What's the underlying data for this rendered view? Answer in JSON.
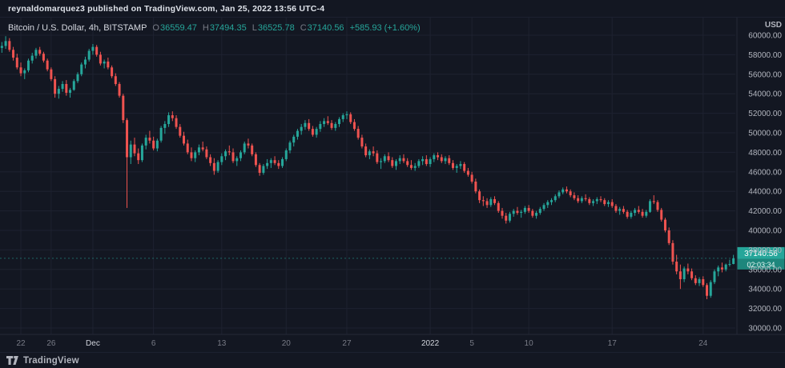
{
  "publish_bar": {
    "text": "reynaldomarquez3 published on TradingView.com, Jan 25, 2022 13:56 UTC-4"
  },
  "legend": {
    "title": "Bitcoin / U.S. Dollar, 4h, BITSTAMP",
    "o_label": "O",
    "o": "36559.47",
    "h_label": "H",
    "h": "37494.35",
    "l_label": "L",
    "l": "36525.78",
    "c_label": "C",
    "c": "37140.56",
    "change": "+585.93 (+1.60%)"
  },
  "axis": {
    "currency": "USD",
    "last_price": "37140.56",
    "countdown": "02:03:34"
  },
  "footer": {
    "brand": "TradingView"
  },
  "colors": {
    "bg": "#131722",
    "grid": "#1e2230",
    "up": "#26a69a",
    "down": "#ef5350",
    "axis_text": "#b2b5be",
    "axis_text_dim": "#787b86",
    "axis_text_major": "#d1d4dc",
    "badge": "#26a69a",
    "badge_dark": "#1e867c",
    "scale_border": "#242837"
  },
  "chart_data": {
    "type": "candlestick",
    "title": "Bitcoin / U.S. Dollar, 4h, BITSTAMP",
    "symbol": "BTCUSD",
    "interval": "4h",
    "exchange": "BITSTAMP",
    "last": {
      "o": 36559.47,
      "h": 37494.35,
      "l": 36525.78,
      "c": 37140.56,
      "change": 585.93,
      "change_pct": 1.6
    },
    "y_axis": {
      "min": 30000,
      "max": 60000,
      "step": 2000,
      "ticks": [
        60000,
        58000,
        56000,
        54000,
        52000,
        50000,
        48000,
        46000,
        44000,
        42000,
        40000,
        38000,
        36000,
        34000,
        32000,
        30000
      ]
    },
    "x_ticks": [
      {
        "label": "22",
        "i": 5,
        "major": false
      },
      {
        "label": "26",
        "i": 13,
        "major": false
      },
      {
        "label": "Dec",
        "i": 24,
        "major": true
      },
      {
        "label": "6",
        "i": 40,
        "major": false
      },
      {
        "label": "13",
        "i": 58,
        "major": false
      },
      {
        "label": "20",
        "i": 75,
        "major": false
      },
      {
        "label": "27",
        "i": 91,
        "major": false
      },
      {
        "label": "2022",
        "i": 113,
        "major": true
      },
      {
        "label": "5",
        "i": 124,
        "major": false
      },
      {
        "label": "10",
        "i": 139,
        "major": false
      },
      {
        "label": "17",
        "i": 161,
        "major": false
      },
      {
        "label": "24",
        "i": 185,
        "major": false
      }
    ],
    "candles": [
      [
        58700,
        59300,
        58200,
        58900
      ],
      [
        58900,
        59900,
        58600,
        59400
      ],
      [
        59400,
        59700,
        58300,
        58500
      ],
      [
        58500,
        58800,
        57400,
        57700
      ],
      [
        57700,
        58100,
        56500,
        56700
      ],
      [
        56700,
        57200,
        55800,
        56100
      ],
      [
        56100,
        56600,
        55500,
        56400
      ],
      [
        56400,
        57600,
        56200,
        57400
      ],
      [
        57400,
        58200,
        57100,
        57900
      ],
      [
        57900,
        58700,
        57600,
        58500
      ],
      [
        58500,
        58800,
        57900,
        58100
      ],
      [
        58100,
        58300,
        57200,
        57400
      ],
      [
        57400,
        57600,
        56300,
        56500
      ],
      [
        56500,
        56700,
        55300,
        55500
      ],
      [
        55500,
        55800,
        53600,
        54000
      ],
      [
        54000,
        54800,
        53500,
        54500
      ],
      [
        54500,
        55300,
        54200,
        55000
      ],
      [
        55000,
        55400,
        53800,
        54100
      ],
      [
        54100,
        54600,
        53600,
        54400
      ],
      [
        54400,
        55500,
        54300,
        55300
      ],
      [
        55300,
        56200,
        55100,
        56000
      ],
      [
        56000,
        57200,
        55800,
        57000
      ],
      [
        57000,
        57800,
        56600,
        57500
      ],
      [
        57500,
        58600,
        57300,
        58400
      ],
      [
        58400,
        59100,
        58000,
        58800
      ],
      [
        58800,
        59000,
        57800,
        58000
      ],
      [
        58000,
        58300,
        56900,
        57100
      ],
      [
        57100,
        57500,
        56600,
        57300
      ],
      [
        57300,
        57700,
        56500,
        56700
      ],
      [
        56700,
        56900,
        55600,
        55800
      ],
      [
        55800,
        56100,
        54800,
        55000
      ],
      [
        55000,
        55200,
        53600,
        53800
      ],
      [
        53800,
        54000,
        51000,
        51300
      ],
      [
        51300,
        51500,
        42300,
        47500
      ],
      [
        47500,
        49200,
        46800,
        48800
      ],
      [
        48800,
        49500,
        47600,
        47900
      ],
      [
        47900,
        48400,
        46800,
        47200
      ],
      [
        47200,
        48900,
        47000,
        48700
      ],
      [
        48700,
        49800,
        48300,
        49500
      ],
      [
        49500,
        50200,
        48900,
        49200
      ],
      [
        49200,
        49600,
        48200,
        48400
      ],
      [
        48400,
        49400,
        48100,
        49200
      ],
      [
        49200,
        50700,
        49000,
        50500
      ],
      [
        50500,
        51200,
        49900,
        50900
      ],
      [
        50900,
        52100,
        50600,
        51800
      ],
      [
        51800,
        52200,
        51200,
        51500
      ],
      [
        51500,
        51800,
        50400,
        50600
      ],
      [
        50600,
        50900,
        49500,
        49700
      ],
      [
        49700,
        50100,
        48700,
        48900
      ],
      [
        48900,
        49300,
        47800,
        48000
      ],
      [
        48000,
        48500,
        47100,
        47400
      ],
      [
        47400,
        48200,
        47000,
        48000
      ],
      [
        48000,
        48800,
        47700,
        48500
      ],
      [
        48500,
        49100,
        48100,
        48300
      ],
      [
        48300,
        48600,
        47300,
        47500
      ],
      [
        47500,
        47800,
        46600,
        46900
      ],
      [
        46900,
        47400,
        45700,
        46100
      ],
      [
        46100,
        47200,
        45900,
        47000
      ],
      [
        47000,
        47900,
        46700,
        47600
      ],
      [
        47600,
        48300,
        47200,
        48100
      ],
      [
        48100,
        48700,
        47700,
        48000
      ],
      [
        48000,
        48400,
        46900,
        47100
      ],
      [
        47100,
        47600,
        46600,
        47400
      ],
      [
        47400,
        48200,
        47100,
        48000
      ],
      [
        48000,
        49100,
        47800,
        48900
      ],
      [
        48900,
        49400,
        48400,
        48700
      ],
      [
        48700,
        48900,
        47600,
        47800
      ],
      [
        47800,
        48000,
        46500,
        46700
      ],
      [
        46700,
        46900,
        45600,
        45900
      ],
      [
        45900,
        46800,
        45700,
        46600
      ],
      [
        46600,
        47300,
        46300,
        46900
      ],
      [
        46900,
        47400,
        46400,
        47200
      ],
      [
        47200,
        47600,
        46700,
        46900
      ],
      [
        46900,
        47200,
        46300,
        46600
      ],
      [
        46600,
        47500,
        46400,
        47300
      ],
      [
        47300,
        48400,
        47100,
        48200
      ],
      [
        48200,
        49200,
        47900,
        49000
      ],
      [
        49000,
        49800,
        48600,
        49600
      ],
      [
        49600,
        50400,
        49300,
        50200
      ],
      [
        50200,
        50900,
        49800,
        50600
      ],
      [
        50600,
        51300,
        50300,
        51000
      ],
      [
        51000,
        51400,
        50200,
        50400
      ],
      [
        50400,
        50700,
        49600,
        49800
      ],
      [
        49800,
        50600,
        49500,
        50400
      ],
      [
        50400,
        51200,
        50100,
        50900
      ],
      [
        50900,
        51500,
        50600,
        51200
      ],
      [
        51200,
        51700,
        50800,
        51000
      ],
      [
        51000,
        51300,
        50300,
        50500
      ],
      [
        50500,
        51100,
        50200,
        50900
      ],
      [
        50900,
        51600,
        50600,
        51400
      ],
      [
        51400,
        52000,
        51100,
        51800
      ],
      [
        51800,
        52200,
        51400,
        51900
      ],
      [
        51900,
        52100,
        50900,
        51100
      ],
      [
        51100,
        51400,
        50200,
        50400
      ],
      [
        50400,
        50700,
        49300,
        49500
      ],
      [
        49500,
        49800,
        48400,
        48600
      ],
      [
        48600,
        48900,
        47500,
        47700
      ],
      [
        47700,
        48300,
        47300,
        48100
      ],
      [
        48100,
        48600,
        47600,
        47900
      ],
      [
        47900,
        48200,
        46800,
        47000
      ],
      [
        47000,
        47400,
        46300,
        47100
      ],
      [
        47100,
        47800,
        46900,
        47600
      ],
      [
        47600,
        48000,
        47000,
        47200
      ],
      [
        47200,
        47500,
        46400,
        46600
      ],
      [
        46600,
        47300,
        46200,
        47100
      ],
      [
        47100,
        47700,
        46800,
        47400
      ],
      [
        47400,
        47800,
        46900,
        47100
      ],
      [
        47100,
        47400,
        46500,
        46700
      ],
      [
        46700,
        47200,
        46200,
        46400
      ],
      [
        46400,
        46900,
        46100,
        46600
      ],
      [
        46600,
        47300,
        46400,
        47100
      ],
      [
        47100,
        47600,
        46700,
        47300
      ],
      [
        47300,
        47700,
        46600,
        46800
      ],
      [
        46800,
        47500,
        46500,
        47300
      ],
      [
        47300,
        47900,
        47000,
        47700
      ],
      [
        47700,
        48000,
        47200,
        47500
      ],
      [
        47500,
        47800,
        46900,
        47100
      ],
      [
        47100,
        47600,
        46800,
        47400
      ],
      [
        47400,
        47700,
        46700,
        46900
      ],
      [
        46900,
        47200,
        46200,
        46400
      ],
      [
        46400,
        46800,
        45900,
        46600
      ],
      [
        46600,
        47100,
        46300,
        46800
      ],
      [
        46800,
        47000,
        45900,
        46100
      ],
      [
        46100,
        46400,
        45500,
        45700
      ],
      [
        45700,
        46000,
        44800,
        45000
      ],
      [
        45000,
        45300,
        43800,
        44000
      ],
      [
        44000,
        44200,
        42800,
        43100
      ],
      [
        43100,
        43500,
        42500,
        43000
      ],
      [
        43000,
        43300,
        42300,
        42600
      ],
      [
        42600,
        43400,
        42400,
        43200
      ],
      [
        43200,
        43500,
        42600,
        42800
      ],
      [
        42800,
        43000,
        41800,
        42000
      ],
      [
        42000,
        42300,
        41200,
        41500
      ],
      [
        41500,
        41800,
        40700,
        41000
      ],
      [
        41000,
        41900,
        40800,
        41700
      ],
      [
        41700,
        42200,
        41400,
        42000
      ],
      [
        42000,
        42400,
        41600,
        41800
      ],
      [
        41800,
        42100,
        41300,
        41900
      ],
      [
        41900,
        42500,
        41700,
        42300
      ],
      [
        42300,
        42600,
        41800,
        42000
      ],
      [
        42000,
        42200,
        41300,
        41500
      ],
      [
        41500,
        42000,
        41200,
        41800
      ],
      [
        41800,
        42400,
        41600,
        42200
      ],
      [
        42200,
        42800,
        42000,
        42600
      ],
      [
        42600,
        43100,
        42300,
        42900
      ],
      [
        42900,
        43300,
        42600,
        43100
      ],
      [
        43100,
        43700,
        42900,
        43500
      ],
      [
        43500,
        44100,
        43300,
        43900
      ],
      [
        43900,
        44400,
        43700,
        44200
      ],
      [
        44200,
        44500,
        43800,
        44000
      ],
      [
        44000,
        44200,
        43400,
        43600
      ],
      [
        43600,
        43900,
        43100,
        43300
      ],
      [
        43300,
        43600,
        42800,
        43000
      ],
      [
        43000,
        43500,
        42800,
        43300
      ],
      [
        43300,
        43700,
        43000,
        43200
      ],
      [
        43200,
        43400,
        42600,
        42800
      ],
      [
        42800,
        43200,
        42500,
        43000
      ],
      [
        43000,
        43400,
        42700,
        43200
      ],
      [
        43200,
        43500,
        42900,
        43100
      ],
      [
        43100,
        43300,
        42500,
        42700
      ],
      [
        42700,
        43100,
        42400,
        42900
      ],
      [
        42900,
        43200,
        42300,
        42500
      ],
      [
        42500,
        42700,
        41800,
        42000
      ],
      [
        42000,
        42400,
        41600,
        42200
      ],
      [
        42200,
        42500,
        41700,
        41900
      ],
      [
        41900,
        42100,
        41200,
        41400
      ],
      [
        41400,
        42000,
        41200,
        41800
      ],
      [
        41800,
        42300,
        41500,
        42100
      ],
      [
        42100,
        42500,
        41700,
        41900
      ],
      [
        41900,
        42200,
        41300,
        41500
      ],
      [
        41500,
        42100,
        41300,
        41900
      ],
      [
        41900,
        43200,
        41800,
        43000
      ],
      [
        43000,
        43600,
        42700,
        42900
      ],
      [
        42900,
        43100,
        41900,
        42100
      ],
      [
        42100,
        42300,
        40900,
        41100
      ],
      [
        41100,
        41300,
        39800,
        40000
      ],
      [
        40000,
        40300,
        38500,
        38700
      ],
      [
        38700,
        39000,
        36500,
        36800
      ],
      [
        36800,
        37500,
        35500,
        35800
      ],
      [
        35800,
        36500,
        34000,
        35000
      ],
      [
        35000,
        36300,
        34700,
        36100
      ],
      [
        36100,
        36600,
        35500,
        35800
      ],
      [
        35800,
        36100,
        34900,
        35100
      ],
      [
        35100,
        35400,
        34400,
        34600
      ],
      [
        34600,
        35200,
        34300,
        35000
      ],
      [
        35000,
        35300,
        34200,
        34400
      ],
      [
        34400,
        34600,
        32950,
        33300
      ],
      [
        33300,
        34900,
        33100,
        34700
      ],
      [
        34700,
        36000,
        34500,
        35800
      ],
      [
        35800,
        36400,
        35300,
        36200
      ],
      [
        36200,
        36700,
        35700,
        36000
      ],
      [
        36000,
        36600,
        35800,
        36500
      ],
      [
        36500,
        37000,
        36300,
        36559
      ],
      [
        36559.47,
        37494.35,
        36525.78,
        37140.56
      ]
    ]
  }
}
